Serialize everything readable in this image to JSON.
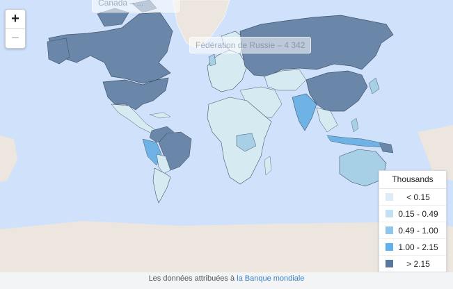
{
  "map": {
    "zoom_in_label": "+",
    "zoom_out_label": "−",
    "tooltip_top": "Canada – ...",
    "tooltip_russia": "Fédération de Russie – 4 342"
  },
  "legend": {
    "title": "Thousands",
    "bins": [
      {
        "label": "< 0.15",
        "color": "#dcebf6"
      },
      {
        "label": "0.15 - 0.49",
        "color": "#c3e1f5"
      },
      {
        "label": "0.49 - 1.00",
        "color": "#8ec5ea"
      },
      {
        "label": "1.00 - 2.15",
        "color": "#5fb0ec"
      },
      {
        "label": "> 2.15",
        "color": "#58779c"
      }
    ]
  },
  "colors": {
    "ocean": "#cfe1fb",
    "land_no_data": "#ece6df",
    "low": "#d6eaf1",
    "mid": "#a7cfe6",
    "bright": "#6fb2e6",
    "high": "#6a87aa"
  },
  "attribution": {
    "prefix": "Les données attribuées à",
    "link": "la Banque mondiale"
  }
}
